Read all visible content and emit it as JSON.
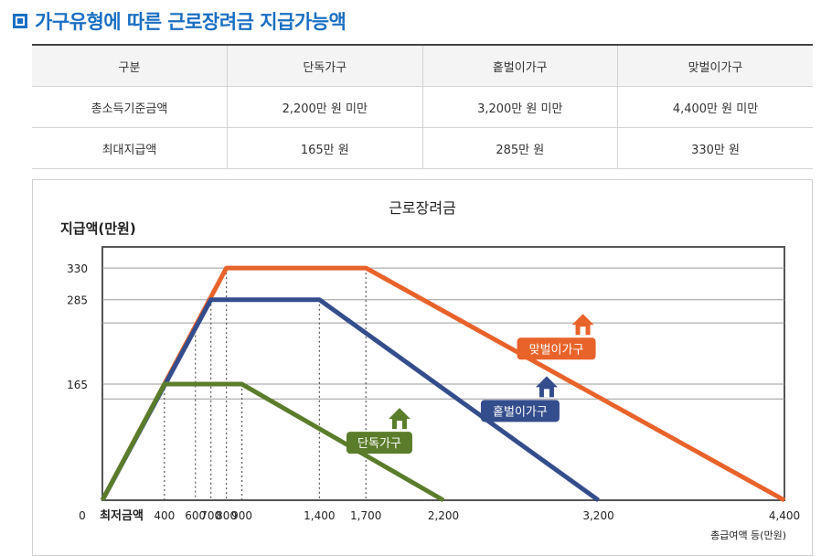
{
  "header": {
    "title": "가구유형에 따른 근로장려금 지급가능액"
  },
  "table": {
    "headers": [
      "구분",
      "단독가구",
      "홑벌이가구",
      "맞벌이가구"
    ],
    "rows": [
      [
        "총소득기준금액",
        "2,200만 원 미만",
        "3,200만 원 미만",
        "4,400만 원 미만"
      ],
      [
        "최대지급액",
        "165만 원",
        "285만 원",
        "330만 원"
      ]
    ]
  },
  "chart_data": {
    "type": "line",
    "title": "근로장려금",
    "ylabel": "지급액(만원)",
    "xlabel": "총급여액 등(만원)",
    "origin_label": "0",
    "min_wage_label": "최저금액",
    "x_ticks": [
      {
        "value": 400,
        "label": "400"
      },
      {
        "value": 600,
        "label": "600"
      },
      {
        "value": 700,
        "label": "700"
      },
      {
        "value": 800,
        "label": "800"
      },
      {
        "value": 900,
        "label": "900"
      },
      {
        "value": 1400,
        "label": "1,400"
      },
      {
        "value": 1700,
        "label": "1,700"
      },
      {
        "value": 2200,
        "label": "2,200"
      },
      {
        "value": 3200,
        "label": "3,200"
      },
      {
        "value": 4400,
        "label": "4,400"
      }
    ],
    "y_ticks": [
      {
        "value": 165,
        "label": "165"
      },
      {
        "value": 285,
        "label": "285"
      },
      {
        "value": 330,
        "label": "330"
      }
    ],
    "xlim": [
      0,
      4400
    ],
    "ylim": [
      0,
      360
    ],
    "series": [
      {
        "name": "맞벌이가구",
        "color": "#e8632a",
        "x": [
          0,
          800,
          1700,
          4400
        ],
        "y": [
          0,
          330,
          330,
          0
        ]
      },
      {
        "name": "홑벌이가구",
        "color": "#344d8c",
        "x": [
          0,
          700,
          1400,
          3200
        ],
        "y": [
          0,
          285,
          285,
          0
        ]
      },
      {
        "name": "단독가구",
        "color": "#5b7d2b",
        "x": [
          0,
          400,
          900,
          2200
        ],
        "y": [
          0,
          165,
          165,
          0
        ]
      }
    ],
    "house_icon": "house-icon"
  }
}
